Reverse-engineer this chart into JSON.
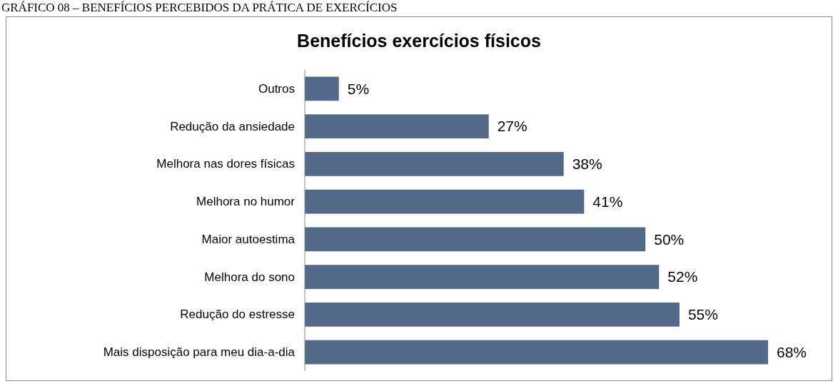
{
  "chart_data": {
    "type": "bar",
    "orientation": "horizontal",
    "title": "Benefícios exercícios físicos",
    "annotations": [
      "GRÁFICO 08 – BENEFÍCIOS PERCEBIDOS DA PRÁTICA DE EXERCÍCIOS"
    ],
    "categories": [
      "Outros",
      "Redução da ansiedade",
      "Melhora nas dores físicas",
      "Melhora no humor",
      "Maior autoestima",
      "Melhora do sono",
      "Redução do estresse",
      "Mais disposição para meu dia-a-dia"
    ],
    "values": [
      5,
      27,
      38,
      41,
      50,
      52,
      55,
      68
    ],
    "value_labels": [
      "5%",
      "27%",
      "38%",
      "41%",
      "50%",
      "52%",
      "55%",
      "68%"
    ],
    "color": "#52698a"
  }
}
